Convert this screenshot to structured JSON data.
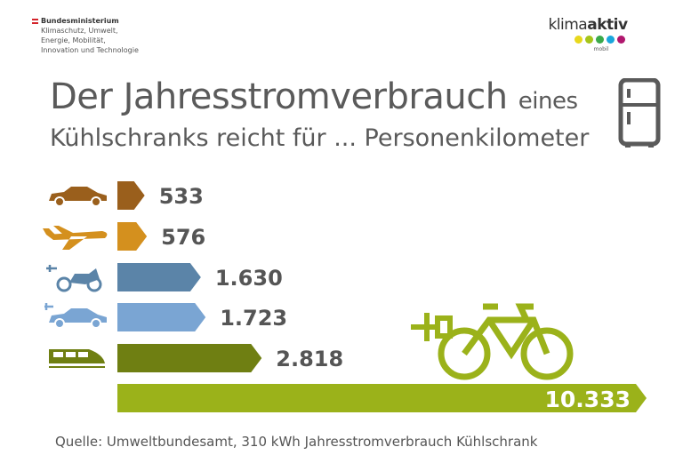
{
  "header": {
    "ministry": [
      "Bundesministerium",
      "Klimaschutz, Umwelt,",
      "Energie, Mobilität,",
      "Innovation und Technologie"
    ],
    "logo": {
      "part1": "klima",
      "part2": "aktiv",
      "sub": "mobil",
      "dot_colors": [
        "#e8d81c",
        "#a6c51a",
        "#3aa94a",
        "#1aa6dc",
        "#b0176e"
      ]
    },
    "title_line1_big": "Der Jahresstromverbrauch",
    "title_line1_small": "eines",
    "title_line2": "Kühlschranks reicht für ... Personenkilometer"
  },
  "chart_data": {
    "type": "bar",
    "orientation": "horizontal",
    "categories": [
      "car",
      "airplane",
      "e-motorcycle",
      "e-car",
      "train",
      "e-bike"
    ],
    "icons": [
      "car-icon",
      "airplane-icon",
      "e-motorcycle-icon",
      "e-car-icon",
      "train-icon",
      "e-bike-icon"
    ],
    "values": [
      533,
      576,
      1630,
      1723,
      2818,
      10333
    ],
    "labels": [
      "533",
      "576",
      "1.630",
      "1.723",
      "2.818",
      "10.333"
    ],
    "colors": [
      "#9a5f1c",
      "#d4901e",
      "#5b84a8",
      "#7aa5d3",
      "#6f7f12",
      "#9bb21a"
    ],
    "xlim": [
      0,
      10333
    ]
  },
  "source": "Quelle: Umweltbundesamt, 310 kWh Jahresstromverbrauch Kühlschrank"
}
